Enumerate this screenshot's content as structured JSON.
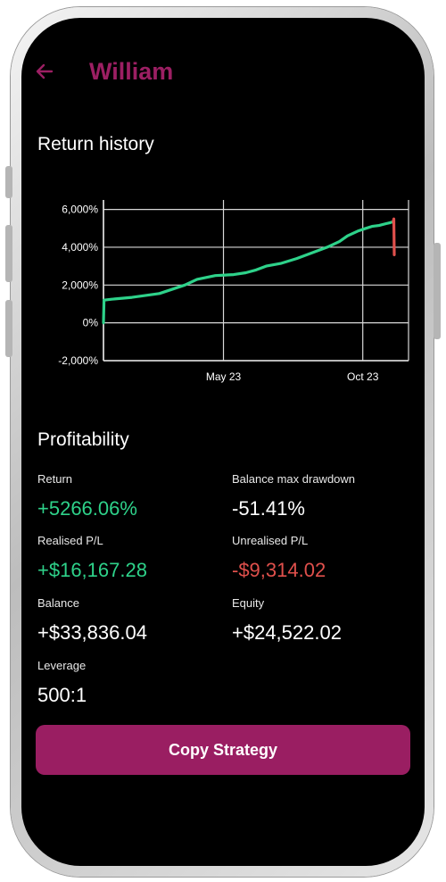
{
  "colors": {
    "accent": "#9c1f63",
    "positive": "#2ed28a",
    "negative": "#e0504c",
    "background": "#000000"
  },
  "header": {
    "back_icon": "arrow-left-icon",
    "title": "William"
  },
  "return_history": {
    "title": "Return history"
  },
  "chart_data": {
    "type": "line",
    "title": "",
    "xlabel": "",
    "ylabel": "",
    "ylim": [
      -2000,
      6500
    ],
    "grid": true,
    "y_ticks": [
      "6,000%",
      "4,000%",
      "2,000%",
      "0%",
      "-2,000%"
    ],
    "x_ticks": [
      "May 23",
      "Oct 23"
    ],
    "series": [
      {
        "color": "#2ed28a",
        "x": [
          0,
          0.5,
          8,
          28,
          55,
          80,
          92,
          110,
          128,
          140,
          150,
          160,
          175,
          190,
          205,
          220,
          232,
          240,
          250,
          258,
          264,
          271,
          278,
          282,
          285
        ],
        "y": [
          0,
          1200,
          1250,
          1350,
          1550,
          2000,
          2300,
          2500,
          2550,
          2650,
          2800,
          3000,
          3150,
          3400,
          3700,
          4000,
          4300,
          4600,
          4850,
          5000,
          5100,
          5150,
          5250,
          5300,
          5350
        ]
      },
      {
        "color": "#e0504c",
        "x": [
          285,
          285.5,
          286
        ],
        "y": [
          5350,
          5500,
          3600
        ]
      }
    ]
  },
  "profitability": {
    "title": "Profitability",
    "return_label": "Return",
    "return_value": "+5266.06%",
    "drawdown_label": "Balance max drawdown",
    "drawdown_value": "-51.41%",
    "realised_label": "Realised P/L",
    "realised_value": "+$16,167.28",
    "unrealised_label": "Unrealised P/L",
    "unrealised_value": "-$9,314.02",
    "balance_label": "Balance",
    "balance_value": "+$33,836.04",
    "equity_label": "Equity",
    "equity_value": "+$24,522.02",
    "leverage_label": "Leverage",
    "leverage_value": "500:1"
  },
  "actions": {
    "copy_label": "Copy Strategy"
  }
}
